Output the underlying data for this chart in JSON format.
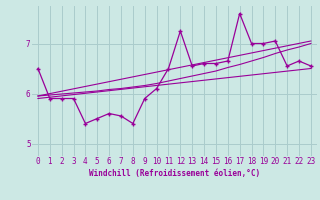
{
  "xlabel": "Windchill (Refroidissement éolien,°C)",
  "bg_color": "#cce8e4",
  "line_color": "#990099",
  "grid_color": "#aacccc",
  "xlim": [
    -0.5,
    23.5
  ],
  "ylim": [
    4.75,
    7.75
  ],
  "yticks": [
    5,
    6,
    7
  ],
  "xticks": [
    0,
    1,
    2,
    3,
    4,
    5,
    6,
    7,
    8,
    9,
    10,
    11,
    12,
    13,
    14,
    15,
    16,
    17,
    18,
    19,
    20,
    21,
    22,
    23
  ],
  "main_x": [
    0,
    1,
    2,
    3,
    4,
    5,
    6,
    7,
    8,
    9,
    10,
    11,
    12,
    13,
    14,
    15,
    16,
    17,
    18,
    19,
    20,
    21,
    22,
    23
  ],
  "main_y": [
    6.5,
    5.9,
    5.9,
    5.9,
    5.4,
    5.5,
    5.6,
    5.55,
    5.4,
    5.9,
    6.1,
    6.5,
    7.25,
    6.55,
    6.6,
    6.6,
    6.65,
    7.6,
    7.0,
    7.0,
    7.05,
    6.55,
    6.65,
    6.55
  ],
  "trend1_x": [
    0,
    1,
    2,
    3,
    4,
    5,
    6,
    7,
    8,
    9,
    10,
    11,
    12,
    13,
    14,
    15,
    16,
    17,
    18,
    19,
    20,
    21,
    22,
    23
  ],
  "trend1_y": [
    5.95,
    5.97,
    5.99,
    6.01,
    6.03,
    6.05,
    6.08,
    6.1,
    6.13,
    6.16,
    6.2,
    6.25,
    6.3,
    6.35,
    6.4,
    6.45,
    6.52,
    6.58,
    6.65,
    6.72,
    6.8,
    6.87,
    6.93,
    7.0
  ],
  "trend2_x": [
    0,
    23
  ],
  "trend2_y": [
    5.9,
    6.5
  ],
  "trend3_x": [
    0,
    23
  ],
  "trend3_y": [
    5.95,
    7.05
  ]
}
